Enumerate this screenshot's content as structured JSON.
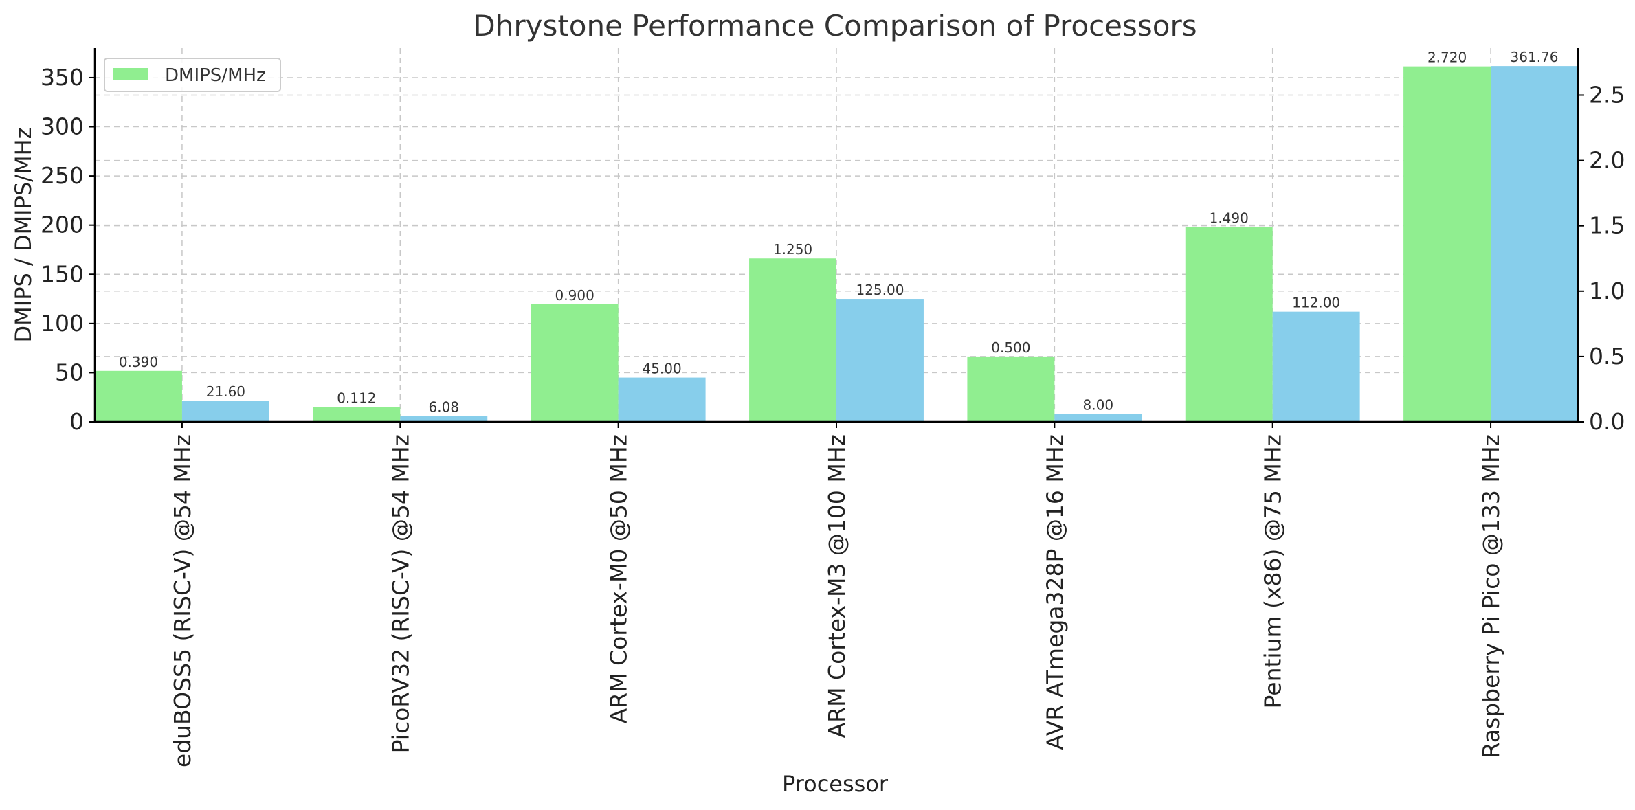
{
  "chart_data": {
    "type": "bar",
    "title": "Dhrystone Performance Comparison of Processors",
    "xlabel": "Processor",
    "ylabel": "DMIPS / DMIPS/MHz",
    "categories": [
      "eduBOSS5 (RISC-V) @54 MHz",
      "PicoRV32 (RISC-V) @54 MHz",
      "ARM Cortex-M0 @50 MHz",
      "ARM Cortex-M3 @100 MHz",
      "AVR ATmega328P @16 MHz",
      "Pentium (x86) @75 MHz",
      "Raspberry Pi Pico @133 MHz"
    ],
    "series": [
      {
        "name": "DMIPS/MHz",
        "axis": "right",
        "color": "#90ee90",
        "values": [
          0.39,
          0.112,
          0.9,
          1.25,
          0.5,
          1.49,
          2.72
        ],
        "value_labels": [
          "0.390",
          "0.112",
          "0.900",
          "1.250",
          "0.500",
          "1.490",
          "2.720"
        ]
      },
      {
        "axis": "left",
        "color": "#87ceeb",
        "values": [
          21.6,
          6.08,
          45.0,
          125.0,
          8.0,
          112.0,
          361.76
        ],
        "value_labels": [
          "21.60",
          "6.08",
          "45.00",
          "125.00",
          "8.00",
          "112.00",
          "361.76"
        ]
      }
    ],
    "y_left": {
      "ylim": [
        0,
        380
      ],
      "ticks": [
        "0",
        "50",
        "100",
        "150",
        "200",
        "250",
        "300",
        "350"
      ],
      "tick_values": [
        0,
        50,
        100,
        150,
        200,
        250,
        300,
        350
      ]
    },
    "y_right": {
      "ylim": [
        0,
        2.86
      ],
      "ticks": [
        "0.0",
        "0.5",
        "1.0",
        "1.5",
        "2.0",
        "2.5"
      ],
      "tick_values": [
        0,
        0.5,
        1.0,
        1.5,
        2.0,
        2.5
      ]
    },
    "grid": true,
    "legend": {
      "placement": "top-left",
      "entries": [
        "DMIPS/MHz"
      ]
    }
  }
}
